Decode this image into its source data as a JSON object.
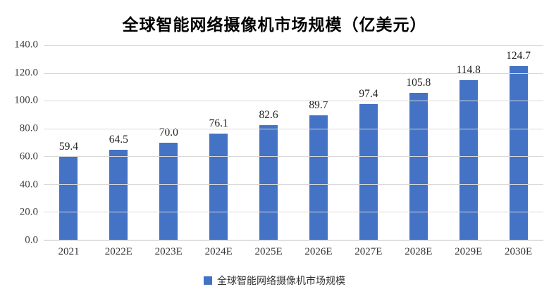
{
  "chart_data": {
    "type": "bar",
    "title": "全球智能网络摄像机市场规模（亿美元）",
    "categories": [
      "2021",
      "2022E",
      "2023E",
      "2024E",
      "2025E",
      "2026E",
      "2027E",
      "2028E",
      "2029E",
      "2030E"
    ],
    "values": [
      59.4,
      64.5,
      70.0,
      76.1,
      82.6,
      89.7,
      97.4,
      105.8,
      114.8,
      124.7
    ],
    "value_labels": [
      "59.4",
      "64.5",
      "70.0",
      "76.1",
      "82.6",
      "89.7",
      "97.4",
      "105.8",
      "114.8",
      "124.7"
    ],
    "xlabel": "",
    "ylabel": "",
    "ylim": [
      0,
      140
    ],
    "yticks": [
      "0.0",
      "20.0",
      "40.0",
      "60.0",
      "80.0",
      "100.0",
      "120.0",
      "140.0"
    ],
    "grid": "horizontal",
    "legend": {
      "position": "bottom",
      "entries": [
        "全球智能网络摄像机市场规模"
      ]
    },
    "bar_color": "#4472C4"
  }
}
